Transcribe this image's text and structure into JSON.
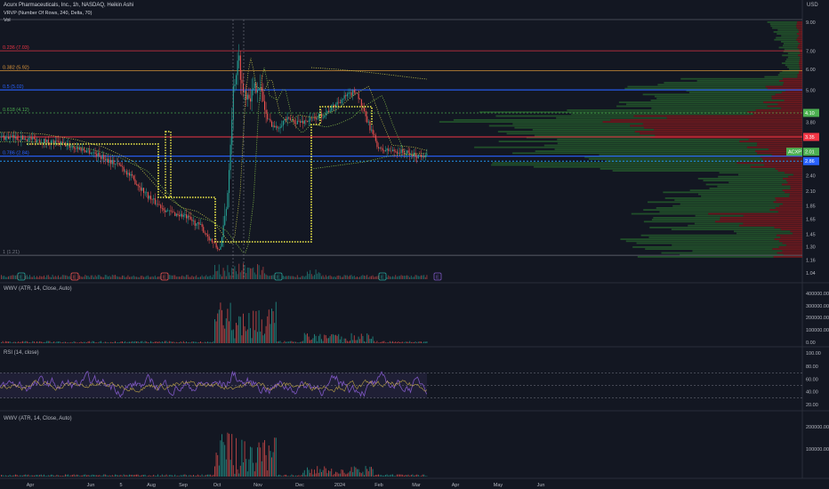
{
  "header": {
    "symbol_line": "Acurx Pharmaceuticals, Inc., 1h, NASDAQ, Heikin Ashi",
    "vrvp_line": "VRVP (Number Of Rows, 240, Delta, 70)",
    "vol_label": "Vol"
  },
  "currency": "USD",
  "ticker_tag": "ACXP",
  "price_tags": {
    "upper": "3.35",
    "current": "2.01",
    "lower": "2.86",
    "small": "4.10"
  },
  "colors": {
    "background": "#131722",
    "bull": "#26a69a",
    "bear": "#ef5350",
    "fib_red": "#f23645",
    "fib_orange": "#e39a3b",
    "fib_blue": "#2962ff",
    "fib_green": "#4caf50",
    "dotted_yellow": "#f5f04a",
    "profile_green": "#2e7d32",
    "profile_red": "#b71c1c",
    "rsi_line": "#7e57c2"
  },
  "panes": {
    "wwv1_label": "WWV (ATR, 14, Close, Auto)",
    "rsi_label": "RSI (14, close)",
    "wwv2_label": "WWV (ATR, 14, Close, Auto)"
  },
  "chart_data": {
    "type": "candlestick",
    "title": "Acurx Pharmaceuticals, Inc., 1h, NASDAQ, Heikin Ashi",
    "ylabel": "USD",
    "y_scale": "log",
    "price_ticks": [
      "9.00",
      "7.00",
      "6.00",
      "5.00",
      "4.10",
      "3.80",
      "3.35",
      "2.86",
      "2.40",
      "2.10",
      "1.85",
      "1.65",
      "1.45",
      "1.30",
      "1.16",
      "1.04"
    ],
    "x_ticks": [
      "Apr",
      "Jun",
      "5",
      "Aug",
      "Sep",
      "Oct",
      "Nov",
      "Dec",
      "2024",
      "Feb",
      "Mar",
      "Apr",
      "May",
      "Jun"
    ],
    "fib_levels": [
      {
        "label": "0.236 (7.03)",
        "level": 0.236,
        "price": 7.03
      },
      {
        "label": "0.382 (5.92)",
        "level": 0.382,
        "price": 5.92
      },
      {
        "label": "0.5 (5.02)",
        "level": 0.5,
        "price": 5.02
      },
      {
        "label": "0.618 (4.12)",
        "level": 0.618,
        "price": 4.12
      },
      {
        "label": "0.786 (2.84)",
        "level": 0.786,
        "price": 2.84
      },
      {
        "label": "1 (1.21)",
        "level": 1,
        "price": 1.21
      }
    ],
    "price_path": [
      [
        "Apr",
        3.3
      ],
      [
        "May",
        3.1
      ],
      [
        "Jun",
        2.9
      ],
      [
        "Jul",
        2.5
      ],
      [
        "Aug",
        1.9
      ],
      [
        "Sep",
        1.6
      ],
      [
        "Oct",
        1.3
      ],
      [
        "Oct",
        6.5
      ],
      [
        "Nov",
        4.2
      ],
      [
        "Nov",
        3.5
      ],
      [
        "Dec",
        4.0
      ],
      [
        "2024",
        5.1
      ],
      [
        "2024",
        3.8
      ],
      [
        "Feb",
        3.0
      ],
      [
        "Mar",
        2.9
      ]
    ],
    "events": [
      "E",
      "E",
      "E",
      "E",
      "E",
      "E"
    ],
    "wwv1_ticks": [
      "400000.00",
      "300000.00",
      "200000.00",
      "100000.00",
      "0.00"
    ],
    "rsi_ticks": [
      "100.00",
      "80.00",
      "60.00",
      "40.00",
      "20.00"
    ],
    "wwv2_ticks": [
      "200000.00",
      "100000.00"
    ],
    "rsi_band": [
      30,
      70
    ]
  }
}
